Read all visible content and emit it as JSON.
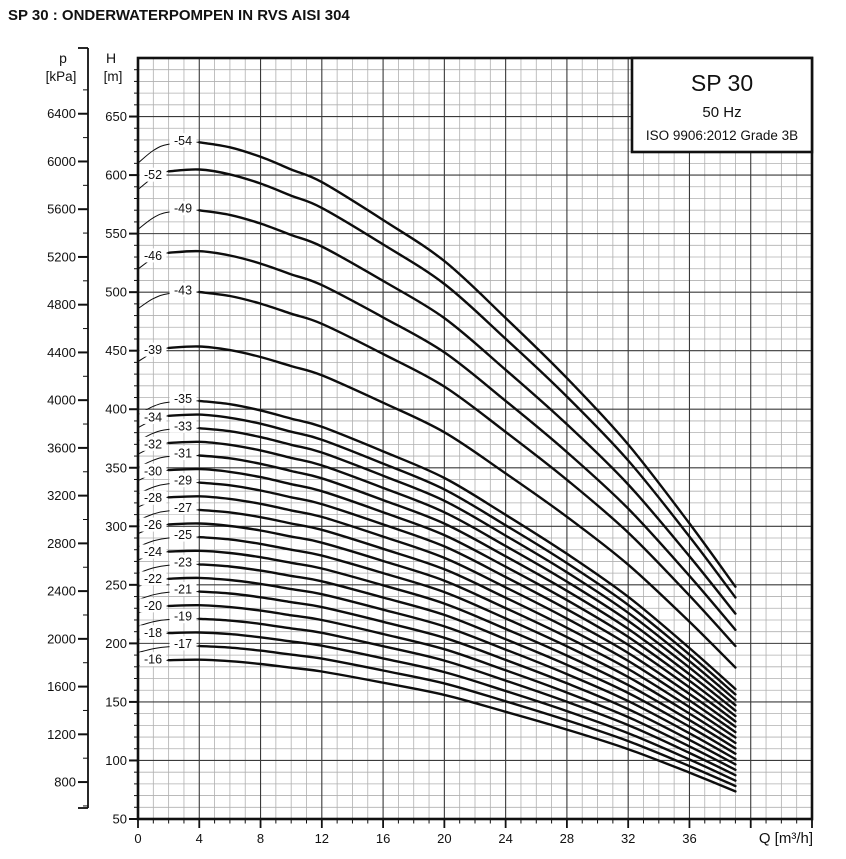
{
  "title": "SP 30 : ONDERWATERPOMPEN IN RVS AISI 304",
  "info_box": {
    "model": "SP 30",
    "frequency": "50 Hz",
    "standard": "ISO 9906:2012 Grade 3B"
  },
  "axes": {
    "pressure_axis": {
      "symbol": "p",
      "unit": "[kPa]",
      "major_ticks": [
        6400,
        6000,
        5600,
        5200,
        4800,
        4400,
        4000,
        3600,
        3200,
        2800,
        2400,
        2000,
        1600,
        1200,
        800
      ],
      "minor_step": 200,
      "kpa_per_m": 9.81
    },
    "head_axis": {
      "symbol": "H",
      "unit": "[m]",
      "major_ticks": [
        650,
        600,
        550,
        500,
        450,
        400,
        350,
        300,
        250,
        200,
        150,
        100,
        50
      ],
      "minor_step": 10,
      "range": [
        50,
        700
      ]
    },
    "flow_axis": {
      "label": "Q [m³/h]",
      "labeled_ticks": [
        0,
        4,
        8,
        12,
        16,
        20,
        24,
        28,
        32,
        36
      ],
      "major_step": 4,
      "minor_step": 1,
      "range": [
        0,
        44
      ]
    }
  },
  "chart_data": {
    "type": "line",
    "title": "SP 30 submersible pump family performance curves, 50 Hz (head vs flow per stage count)",
    "xlabel": "Q [m³/h]",
    "ylabel": "H [m]",
    "xlim": [
      0,
      44
    ],
    "ylim": [
      50,
      700
    ],
    "grid": "major and minor, on",
    "legend_position": "top-right box",
    "x": [
      0,
      1,
      2,
      4,
      6,
      8,
      10,
      12,
      16,
      20,
      24,
      28,
      32,
      36,
      39
    ],
    "head_per_stage": [
      11.3,
      11.5,
      11.6,
      11.63,
      11.55,
      11.4,
      11.2,
      11.0,
      10.4,
      9.75,
      8.85,
      7.9,
      6.85,
      5.6,
      4.6
    ],
    "series": [
      {
        "name": "-54",
        "stages": 54,
        "label_side": "right",
        "values": [
          610.2,
          621.0,
          626.4,
          628.0,
          623.7,
          615.6,
          604.8,
          594.0,
          561.6,
          526.5,
          477.9,
          426.6,
          369.9,
          302.4,
          248.4
        ]
      },
      {
        "name": "-52",
        "stages": 52,
        "label_side": "left",
        "values": [
          587.6,
          598.0,
          603.2,
          604.8,
          600.6,
          592.8,
          582.4,
          572.0,
          540.8,
          507.0,
          460.2,
          410.8,
          356.2,
          291.2,
          239.2
        ]
      },
      {
        "name": "-49",
        "stages": 49,
        "label_side": "right",
        "values": [
          553.7,
          563.5,
          568.4,
          569.9,
          566.0,
          558.6,
          548.8,
          539.0,
          509.6,
          477.8,
          433.7,
          387.1,
          335.7,
          274.4,
          225.4
        ]
      },
      {
        "name": "-46",
        "stages": 46,
        "label_side": "left",
        "values": [
          519.8,
          529.0,
          533.6,
          535.0,
          531.3,
          524.4,
          515.2,
          506.0,
          478.4,
          448.5,
          407.1,
          363.4,
          315.1,
          257.6,
          211.6
        ]
      },
      {
        "name": "-43",
        "stages": 43,
        "label_side": "right",
        "values": [
          485.9,
          494.5,
          498.8,
          500.1,
          496.7,
          490.2,
          481.6,
          473.0,
          447.2,
          419.3,
          380.6,
          339.7,
          294.6,
          240.8,
          197.8
        ]
      },
      {
        "name": "-39",
        "stages": 39,
        "label_side": "left",
        "values": [
          440.7,
          448.5,
          452.4,
          453.6,
          450.5,
          444.6,
          436.8,
          429.0,
          405.6,
          380.3,
          345.2,
          308.1,
          267.2,
          218.4,
          179.4
        ]
      },
      {
        "name": "-35",
        "stages": 35,
        "label_side": "right",
        "values": [
          395.5,
          402.5,
          406.0,
          407.1,
          404.3,
          399.0,
          392.0,
          385.0,
          364.0,
          341.3,
          309.8,
          276.5,
          239.8,
          196.0,
          161.0
        ]
      },
      {
        "name": "-34",
        "stages": 34,
        "label_side": "left",
        "values": [
          384.2,
          391.0,
          394.4,
          395.4,
          392.7,
          387.6,
          380.8,
          374.0,
          353.6,
          331.5,
          300.9,
          268.6,
          232.9,
          190.4,
          156.4
        ]
      },
      {
        "name": "-33",
        "stages": 33,
        "label_side": "right",
        "values": [
          372.9,
          379.5,
          382.8,
          383.8,
          381.2,
          376.2,
          369.6,
          363.0,
          343.2,
          321.8,
          292.1,
          260.7,
          226.1,
          184.8,
          151.8
        ]
      },
      {
        "name": "-32",
        "stages": 32,
        "label_side": "left",
        "values": [
          361.6,
          368.0,
          371.2,
          372.2,
          369.6,
          364.8,
          358.4,
          352.0,
          332.8,
          312.0,
          283.2,
          252.8,
          219.2,
          179.2,
          147.2
        ]
      },
      {
        "name": "-31",
        "stages": 31,
        "label_side": "right",
        "values": [
          350.3,
          356.5,
          359.6,
          360.5,
          358.1,
          353.4,
          347.2,
          341.0,
          322.4,
          302.3,
          274.4,
          244.9,
          212.4,
          173.6,
          142.6
        ]
      },
      {
        "name": "-30",
        "stages": 30,
        "label_side": "left",
        "values": [
          339.0,
          345.0,
          348.0,
          348.9,
          346.5,
          342.0,
          336.0,
          330.0,
          312.0,
          292.5,
          265.5,
          237.0,
          205.5,
          168.0,
          138.0
        ]
      },
      {
        "name": "-29",
        "stages": 29,
        "label_side": "right",
        "values": [
          327.7,
          333.5,
          336.4,
          337.3,
          335.0,
          330.6,
          324.8,
          319.0,
          301.6,
          282.8,
          256.7,
          229.1,
          198.7,
          162.4,
          133.4
        ]
      },
      {
        "name": "-28",
        "stages": 28,
        "label_side": "left",
        "values": [
          316.4,
          322.0,
          324.8,
          325.6,
          323.4,
          319.2,
          313.6,
          308.0,
          291.2,
          273.0,
          247.8,
          221.2,
          191.8,
          156.8,
          128.8
        ]
      },
      {
        "name": "-27",
        "stages": 27,
        "label_side": "right",
        "values": [
          305.1,
          310.5,
          313.2,
          314.0,
          311.9,
          307.8,
          302.4,
          297.0,
          280.8,
          263.3,
          239.0,
          213.3,
          185.0,
          151.2,
          124.2
        ]
      },
      {
        "name": "-26",
        "stages": 26,
        "label_side": "left",
        "values": [
          293.8,
          299.0,
          301.6,
          302.4,
          300.3,
          296.4,
          291.2,
          286.0,
          270.4,
          253.5,
          230.1,
          205.4,
          178.1,
          145.6,
          119.6
        ]
      },
      {
        "name": "-25",
        "stages": 25,
        "label_side": "right",
        "values": [
          282.5,
          287.5,
          290.0,
          290.8,
          288.8,
          285.0,
          280.0,
          275.0,
          260.0,
          243.8,
          221.3,
          197.5,
          171.3,
          140.0,
          115.0
        ]
      },
      {
        "name": "-24",
        "stages": 24,
        "label_side": "left",
        "values": [
          271.2,
          276.0,
          278.4,
          279.1,
          277.2,
          273.6,
          268.8,
          264.0,
          249.6,
          234.0,
          212.4,
          189.6,
          164.4,
          134.4,
          110.4
        ]
      },
      {
        "name": "-23",
        "stages": 23,
        "label_side": "right",
        "values": [
          259.9,
          264.5,
          266.8,
          267.5,
          265.7,
          262.2,
          257.6,
          253.0,
          239.2,
          224.3,
          203.6,
          181.7,
          157.6,
          128.8,
          105.8
        ]
      },
      {
        "name": "-22",
        "stages": 22,
        "label_side": "left",
        "values": [
          248.6,
          253.0,
          255.2,
          255.9,
          254.1,
          250.8,
          246.4,
          242.0,
          228.8,
          214.5,
          194.7,
          173.8,
          150.7,
          123.2,
          101.2
        ]
      },
      {
        "name": "-21",
        "stages": 21,
        "label_side": "right",
        "values": [
          237.3,
          241.5,
          243.6,
          244.2,
          242.6,
          239.4,
          235.2,
          231.0,
          218.4,
          204.8,
          185.9,
          165.9,
          143.9,
          117.6,
          96.6
        ]
      },
      {
        "name": "-20",
        "stages": 20,
        "label_side": "left",
        "values": [
          226.0,
          230.0,
          232.0,
          232.6,
          231.0,
          228.0,
          224.0,
          220.0,
          208.0,
          195.0,
          177.0,
          158.0,
          137.0,
          112.0,
          92.0
        ]
      },
      {
        "name": "-19",
        "stages": 19,
        "label_side": "right",
        "values": [
          214.7,
          218.5,
          220.4,
          221.0,
          219.5,
          216.6,
          212.8,
          209.0,
          197.6,
          185.3,
          168.2,
          150.1,
          130.2,
          106.4,
          87.4
        ]
      },
      {
        "name": "-18",
        "stages": 18,
        "label_side": "left",
        "values": [
          203.4,
          207.0,
          208.8,
          209.3,
          207.9,
          205.2,
          201.6,
          198.0,
          187.2,
          175.5,
          159.3,
          142.2,
          123.3,
          100.8,
          82.8
        ]
      },
      {
        "name": "-17",
        "stages": 17,
        "label_side": "right",
        "values": [
          192.1,
          195.5,
          197.2,
          197.7,
          196.4,
          193.8,
          190.4,
          187.0,
          176.8,
          165.8,
          150.5,
          134.3,
          116.5,
          95.2,
          78.2
        ]
      },
      {
        "name": "-16",
        "stages": 16,
        "label_side": "left",
        "values": [
          180.8,
          184.0,
          185.6,
          186.1,
          184.8,
          182.4,
          179.2,
          176.0,
          166.4,
          156.0,
          141.6,
          126.4,
          109.6,
          89.6,
          73.6
        ]
      }
    ]
  },
  "colors": {
    "curve": "#0d0d0d",
    "grid_minor": "#b0b0b0",
    "grid_major": "#3a3a3a",
    "border": "#111111",
    "text": "#111111",
    "background": "#ffffff"
  }
}
